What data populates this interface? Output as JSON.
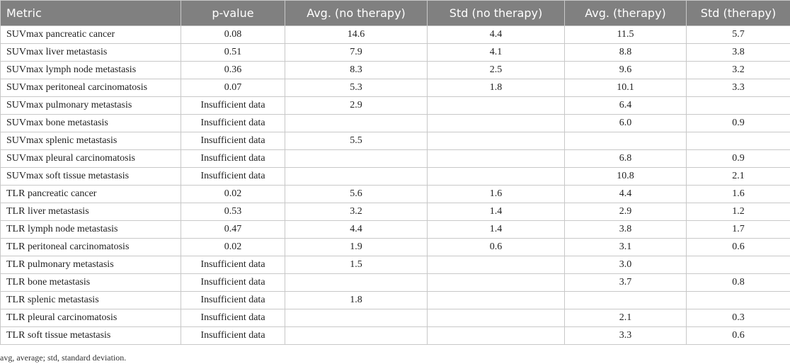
{
  "table": {
    "header": [
      "Metric",
      "p-value",
      "Avg. (no therapy)",
      "Std (no therapy)",
      "Avg. (therapy)",
      "Std (therapy)"
    ],
    "rows": [
      [
        "SUVmax pancreatic cancer",
        "0.08",
        "14.6",
        "4.4",
        "11.5",
        "5.7"
      ],
      [
        "SUVmax liver metastasis",
        "0.51",
        "7.9",
        "4.1",
        "8.8",
        "3.8"
      ],
      [
        "SUVmax lymph node metastasis",
        "0.36",
        "8.3",
        "2.5",
        "9.6",
        "3.2"
      ],
      [
        "SUVmax peritoneal carcinomatosis",
        "0.07",
        "5.3",
        "1.8",
        "10.1",
        "3.3"
      ],
      [
        "SUVmax pulmonary metastasis",
        "Insufficient data",
        "2.9",
        null,
        "6.4",
        null
      ],
      [
        "SUVmax bone metastasis",
        "Insufficient data",
        null,
        null,
        "6.0",
        "0.9"
      ],
      [
        "SUVmax splenic metastasis",
        "Insufficient data",
        "5.5",
        null,
        null,
        null
      ],
      [
        "SUVmax pleural carcinomatosis",
        "Insufficient data",
        null,
        null,
        "6.8",
        "0.9"
      ],
      [
        "SUVmax soft tissue metastasis",
        "Insufficient data",
        null,
        null,
        "10.8",
        "2.1"
      ],
      [
        "TLR pancreatic cancer",
        "0.02",
        "5.6",
        "1.6",
        "4.4",
        "1.6"
      ],
      [
        "TLR liver metastasis",
        "0.53",
        "3.2",
        "1.4",
        "2.9",
        "1.2"
      ],
      [
        "TLR lymph node metastasis",
        "0.47",
        "4.4",
        "1.4",
        "3.8",
        "1.7"
      ],
      [
        "TLR peritoneal carcinomatosis",
        "0.02",
        "1.9",
        "0.6",
        "3.1",
        "0.6"
      ],
      [
        "TLR pulmonary metastasis",
        "Insufficient data",
        "1.5",
        null,
        "3.0",
        null
      ],
      [
        "TLR bone metastasis",
        "Insufficient data",
        null,
        null,
        "3.7",
        "0.8"
      ],
      [
        "TLR splenic metastasis",
        "Insufficient data",
        "1.8",
        null,
        null,
        null
      ],
      [
        "TLR pleural carcinomatosis",
        "Insufficient data",
        null,
        null,
        "2.1",
        "0.3"
      ],
      [
        "TLR soft tissue metastasis",
        "Insufficient data",
        null,
        null,
        "3.3",
        "0.6"
      ]
    ]
  },
  "footnote": "avg, average; std, standard deviation."
}
